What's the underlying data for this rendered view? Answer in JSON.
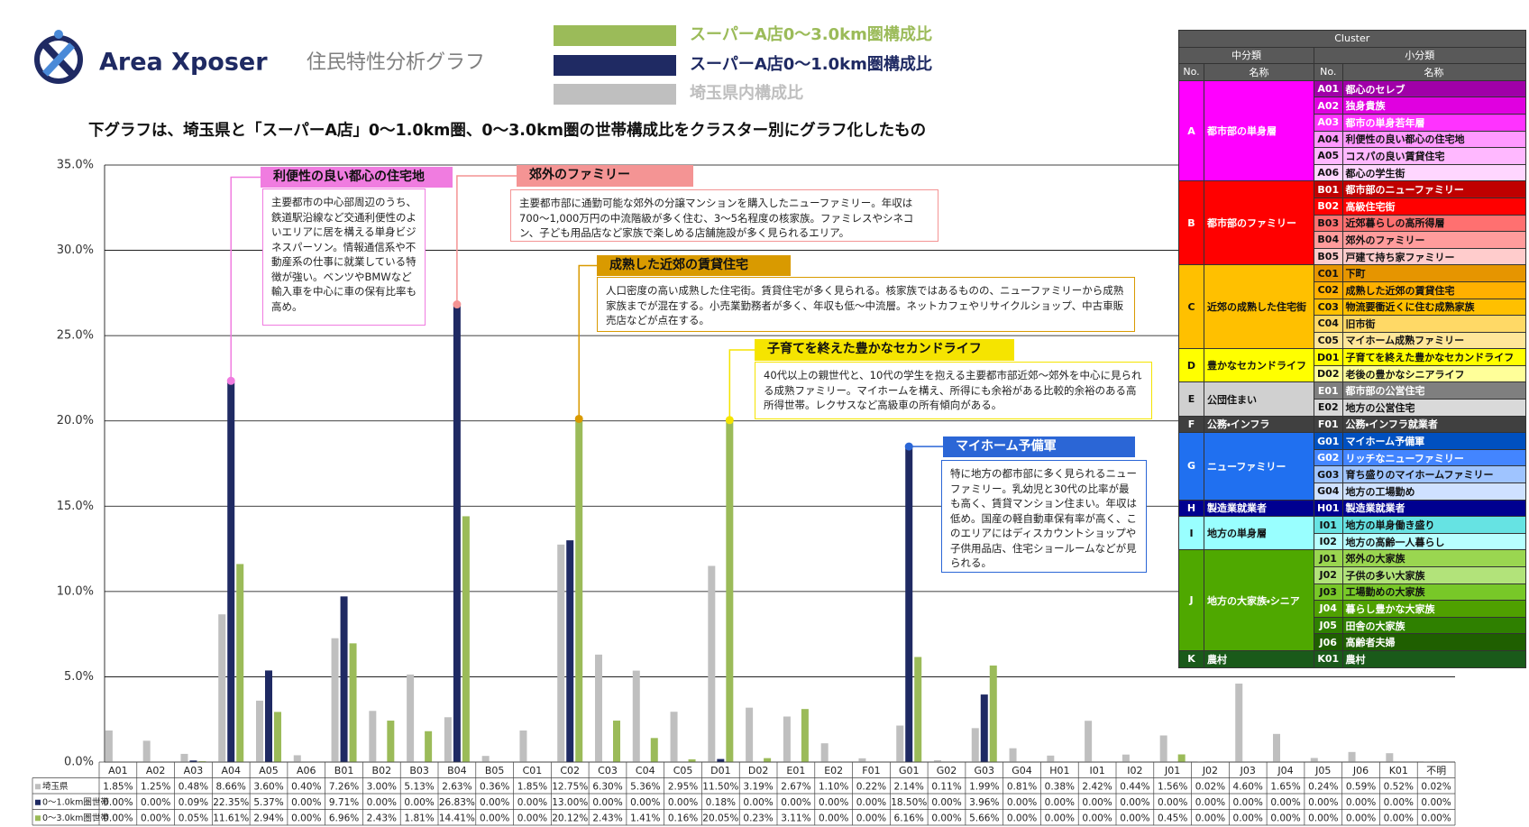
{
  "header": {
    "logo": "Area Xposer",
    "subtitle": "住民特性分析グラフ",
    "description": "下グラフは、埼玉県と「スーパーA店」0～1.0km圏、0～3.0km圏の世帯構成比をクラスター別にグラフ化したもの"
  },
  "chart_data": {
    "type": "bar",
    "categories": [
      "A01",
      "A02",
      "A03",
      "A04",
      "A05",
      "A06",
      "B01",
      "B02",
      "B03",
      "B04",
      "B05",
      "C01",
      "C02",
      "C03",
      "C04",
      "C05",
      "D01",
      "D02",
      "E01",
      "E02",
      "F01",
      "G01",
      "G02",
      "G03",
      "G04",
      "H01",
      "I01",
      "I02",
      "J01",
      "J02",
      "J03",
      "J04",
      "J05",
      "J06",
      "K01",
      "不明"
    ],
    "series": [
      {
        "name": "埼玉県内構成比",
        "table_label": "埼玉県",
        "color": "#bfbfbf",
        "values": [
          1.85,
          1.25,
          0.48,
          8.66,
          3.6,
          0.4,
          7.26,
          3,
          5.13,
          2.63,
          0.36,
          1.85,
          12.75,
          6.3,
          5.36,
          2.95,
          11.5,
          3.19,
          2.67,
          1.1,
          0.22,
          2.14,
          0.11,
          1.99,
          0.81,
          0.38,
          2.42,
          0.44,
          1.56,
          0.02,
          4.6,
          1.65,
          0.24,
          0.59,
          0.52,
          0.02
        ],
        "value_labels": [
          "1.85%",
          "1.25%",
          "0.48%",
          "8.66%",
          "3.60%",
          "0.40%",
          "7.26%",
          "3.00%",
          "5.13%",
          "2.63%",
          "0.36%",
          "1.85%",
          "12.75%",
          "6.30%",
          "5.36%",
          "2.95%",
          "11.50%",
          "3.19%",
          "2.67%",
          "1.10%",
          "0.22%",
          "2.14%",
          "0.11%",
          "1.99%",
          "0.81%",
          "0.38%",
          "2.42%",
          "0.44%",
          "1.56%",
          "0.02%",
          "4.60%",
          "1.65%",
          "0.24%",
          "0.59%",
          "0.52%",
          "0.02%"
        ]
      },
      {
        "name": "スーパーA店0～1.0km圏構成比",
        "table_label": "0～1.0km圏世帯",
        "color": "#1f2a63",
        "values": [
          0,
          0,
          0.09,
          22.35,
          5.37,
          0,
          9.71,
          0,
          0,
          26.83,
          0,
          0,
          13,
          0,
          0,
          0,
          0.18,
          0,
          0,
          0,
          0,
          18.5,
          0,
          3.96,
          0,
          0,
          0,
          0,
          0,
          0,
          0,
          0,
          0,
          0,
          0,
          0
        ],
        "value_labels": [
          "0.00%",
          "0.00%",
          "0.09%",
          "22.35%",
          "5.37%",
          "0.00%",
          "9.71%",
          "0.00%",
          "0.00%",
          "26.83%",
          "0.00%",
          "0.00%",
          "13.00%",
          "0.00%",
          "0.00%",
          "0.00%",
          "0.18%",
          "0.00%",
          "0.00%",
          "0.00%",
          "0.00%",
          "18.50%",
          "0.00%",
          "3.96%",
          "0.00%",
          "0.00%",
          "0.00%",
          "0.00%",
          "0.00%",
          "0.00%",
          "0.00%",
          "0.00%",
          "0.00%",
          "0.00%",
          "0.00%",
          "0.00%"
        ]
      },
      {
        "name": "スーパーA店0～3.0km圏構成比",
        "table_label": "0～3.0km圏世帯",
        "color": "#9bbb59",
        "values": [
          0,
          0,
          0.05,
          11.61,
          2.94,
          0,
          6.96,
          2.43,
          1.81,
          14.41,
          0,
          0,
          20.12,
          2.43,
          1.41,
          0.16,
          20.05,
          0.23,
          3.11,
          0,
          0,
          6.16,
          0,
          5.66,
          0,
          0,
          0,
          0,
          0.45,
          0,
          0,
          0,
          0,
          0,
          0,
          0
        ],
        "value_labels": [
          "0.00%",
          "0.00%",
          "0.05%",
          "11.61%",
          "2.94%",
          "0.00%",
          "6.96%",
          "2.43%",
          "1.81%",
          "14.41%",
          "0.00%",
          "0.00%",
          "20.12%",
          "2.43%",
          "1.41%",
          "0.16%",
          "20.05%",
          "0.23%",
          "3.11%",
          "0.00%",
          "0.00%",
          "6.16%",
          "0.00%",
          "5.66%",
          "0.00%",
          "0.00%",
          "0.00%",
          "0.00%",
          "0.45%",
          "0.00%",
          "0.00%",
          "0.00%",
          "0.00%",
          "0.00%",
          "0.00%",
          "0.00%"
        ]
      }
    ],
    "ylim": [
      0,
      35
    ],
    "yticks": [
      {
        "value": 0,
        "label": "0.0%"
      },
      {
        "value": 5,
        "label": "5.0%"
      },
      {
        "value": 10,
        "label": "10.0%"
      },
      {
        "value": 15,
        "label": "15.0%"
      },
      {
        "value": 20,
        "label": "20.0%"
      },
      {
        "value": 25,
        "label": "25.0%"
      },
      {
        "value": 30,
        "label": "30.0%"
      },
      {
        "value": 35,
        "label": "35.0%"
      }
    ],
    "grid": true,
    "annotations": [
      {
        "title": "利便性の良い都心の住宅地",
        "color": "#f07ce0",
        "text": "主要都市の中心部周辺のうち、鉄道駅沿線など交通利便性のよいエリアに居を構える単身ビジネスパーソン。情報通信系や不動産系の仕事に就業している特徴が強い。ベンツやBMWなど輸入車を中心に車の保有比率も高め。"
      },
      {
        "title": "郊外のファミリー",
        "color": "#f49494",
        "text": "主要都市部に通勤可能な郊外の分譲マンションを購入したニューファミリー。年収は700～1,000万円の中流階級が多く住む、3～5名程度の核家族。ファミレスやシネコン、子ども用品店など家族で楽しめる店舗施設が多く見られるエリア。"
      },
      {
        "title": "成熟した近郊の賃貸住宅",
        "color": "#d99a00",
        "text": "人口密度の高い成熟した住宅街。賃貸住宅が多く見られる。核家族ではあるものの、ニューファミリーから成熟家族までが混在する。小売業勤務者が多く、年収も低～中流層。ネットカフェやリサイクルショップ、中古車販売店などが点在する。"
      },
      {
        "title": "子育てを終えた豊かなセカンドライフ",
        "color": "#f5e400",
        "text": "40代以上の親世代と、10代の学生を抱える主要都市部近郊～郊外を中心に見られる成熟ファミリー。マイホームを構え、所得にも余裕がある比較的余裕のある高所得世帯。レクサスなど高級車の所有傾向がある。"
      },
      {
        "title": "マイホーム予備軍",
        "color": "#2b66d6",
        "text": "特に地方の都市部に多く見られるニューファミリー。乳幼児と30代の比率が最も高く、賃貸マンション住まい。年収は低め。国産の軽自動車保有率が高く、このエリアにはディスカウントショップや子供用品店、住宅ショールームなどが見られる。"
      }
    ]
  },
  "cluster_table": {
    "title": "Cluster",
    "group_header": "中分類",
    "item_header": "小分類",
    "no_header": "No.",
    "name_header": "名称",
    "groups": [
      {
        "no": "A",
        "name": "都市部の単身層",
        "color": "#ff00ff",
        "items": [
          {
            "no": "A01",
            "name": "都心のセレブ",
            "color": "#a000a8"
          },
          {
            "no": "A02",
            "name": "独身貴族",
            "color": "#e000e0"
          },
          {
            "no": "A03",
            "name": "都市の単身若年層",
            "color": "#ff33ff"
          },
          {
            "no": "A04",
            "name": "利便性の良い都心の住宅地",
            "color": "#ff99ff"
          },
          {
            "no": "A05",
            "name": "コスパの良い賃貸住宅",
            "color": "#ffb8ff"
          },
          {
            "no": "A06",
            "name": "都心の学生街",
            "color": "#ffd6ff"
          }
        ]
      },
      {
        "no": "B",
        "name": "都市部のファミリー",
        "color": "#ff0000",
        "items": [
          {
            "no": "B01",
            "name": "都市部のニューファミリー",
            "color": "#c00000"
          },
          {
            "no": "B02",
            "name": "高級住宅街",
            "color": "#ff0000"
          },
          {
            "no": "B03",
            "name": "近郊暮らしの高所得層",
            "color": "#ff7070"
          },
          {
            "no": "B04",
            "name": "郊外のファミリー",
            "color": "#ff9c9c"
          },
          {
            "no": "B05",
            "name": "戸建て持ち家ファミリー",
            "color": "#ffcccc"
          }
        ]
      },
      {
        "no": "C",
        "name": "近郊の成熟した住宅街",
        "color": "#ffc000",
        "items": [
          {
            "no": "C01",
            "name": "下町",
            "color": "#e69500"
          },
          {
            "no": "C02",
            "name": "成熟した近郊の賃貸住宅",
            "color": "#ffb000"
          },
          {
            "no": "C03",
            "name": "物流要衝近くに住む成熟家族",
            "color": "#ffc000"
          },
          {
            "no": "C04",
            "name": "旧市街",
            "color": "#ffd966"
          },
          {
            "no": "C05",
            "name": "マイホーム成熟ファミリー",
            "color": "#ffe699"
          }
        ]
      },
      {
        "no": "D",
        "name": "豊かなセカンドライフ",
        "color": "#ffff00",
        "items": [
          {
            "no": "D01",
            "name": "子育てを終えた豊かなセカンドライフ",
            "color": "#ffff00"
          },
          {
            "no": "D02",
            "name": "老後の豊かなシニアライフ",
            "color": "#ffff99"
          }
        ]
      },
      {
        "no": "E",
        "name": "公団住まい",
        "color": "#d0d0d0",
        "items": [
          {
            "no": "E01",
            "name": "都市部の公営住宅",
            "color": "#7f7f7f"
          },
          {
            "no": "E02",
            "name": "地方の公営住宅",
            "color": "#d9d9d9"
          }
        ]
      },
      {
        "no": "F",
        "name": "公務・インフラ",
        "color": "#404040",
        "items": [
          {
            "no": "F01",
            "name": "公務・インフラ就業者",
            "color": "#404040"
          }
        ]
      },
      {
        "no": "G",
        "name": "ニューファミリー",
        "color": "#2070f0",
        "items": [
          {
            "no": "G01",
            "name": "マイホーム予備軍",
            "color": "#0050c0"
          },
          {
            "no": "G02",
            "name": "リッチなニューファミリー",
            "color": "#4385ff"
          },
          {
            "no": "G03",
            "name": "育ち盛りのマイホームファミリー",
            "color": "#9fc4ff"
          },
          {
            "no": "G04",
            "name": "地方の工場勤め",
            "color": "#cfe1ff"
          }
        ]
      },
      {
        "no": "H",
        "name": "製造業就業者",
        "color": "#000090",
        "items": [
          {
            "no": "H01",
            "name": "製造業就業者",
            "color": "#000090"
          }
        ]
      },
      {
        "no": "I",
        "name": "地方の単身層",
        "color": "#99ffff",
        "items": [
          {
            "no": "I01",
            "name": "地方の単身働き盛り",
            "color": "#66e3e3"
          },
          {
            "no": "I02",
            "name": "地方の高齢一人暮らし",
            "color": "#b8ffff"
          }
        ]
      },
      {
        "no": "J",
        "name": "地方の大家族・シニア",
        "color": "#4fa800",
        "items": [
          {
            "no": "J01",
            "name": "郊外の大家族",
            "color": "#9ad650"
          },
          {
            "no": "J02",
            "name": "子供の多い大家族",
            "color": "#b2e37a"
          },
          {
            "no": "J03",
            "name": "工場勤めの大家族",
            "color": "#78c828"
          },
          {
            "no": "J04",
            "name": "暮らし豊かな大家族",
            "color": "#4fa000"
          },
          {
            "no": "J05",
            "name": "田舎の大家族",
            "color": "#2f8000"
          },
          {
            "no": "J06",
            "name": "高齢者夫婦",
            "color": "#1f5f00"
          }
        ]
      },
      {
        "no": "K",
        "name": "農村",
        "color": "#1a5a1a",
        "items": [
          {
            "no": "K01",
            "name": "農村",
            "color": "#1a5a1a"
          }
        ]
      }
    ]
  }
}
